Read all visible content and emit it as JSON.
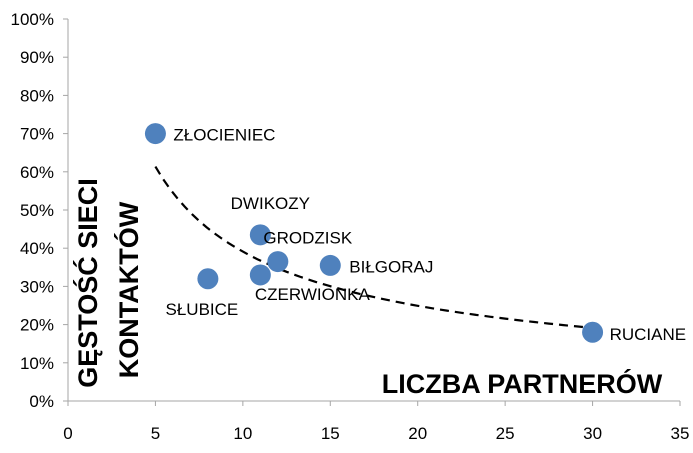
{
  "chart_data": {
    "type": "scatter",
    "xlabel": "LICZBA PARTNERÓW",
    "ylabel_lines": [
      "GĘSTOŚĆ SIECI",
      "KONTAKTÓW"
    ],
    "xlim": [
      0,
      35
    ],
    "ylim": [
      0,
      1
    ],
    "x_ticks": [
      "0",
      "5",
      "10",
      "15",
      "20",
      "25",
      "30",
      "35"
    ],
    "y_ticks": [
      "0%",
      "10%",
      "20%",
      "30%",
      "40%",
      "50%",
      "60%",
      "70%",
      "80%",
      "90%",
      "100%"
    ],
    "grid": false,
    "marker_color": "#4f81bd",
    "trendline": {
      "type": "power",
      "style": "dashed",
      "x_range": [
        5,
        30
      ]
    },
    "points": [
      {
        "label": "ZŁOCIENIEC",
        "x": 5,
        "y": 0.7
      },
      {
        "label": "SŁUBICE",
        "x": 8,
        "y": 0.32
      },
      {
        "label": "DWIKOZY",
        "x": 11,
        "y": 0.435
      },
      {
        "label": "CZERWIONKA",
        "x": 11,
        "y": 0.33
      },
      {
        "label": "GRODZISK",
        "x": 12,
        "y": 0.365
      },
      {
        "label": "BIŁGORAJ",
        "x": 15,
        "y": 0.355
      },
      {
        "label": "RUCIANE",
        "x": 30,
        "y": 0.18
      }
    ]
  }
}
